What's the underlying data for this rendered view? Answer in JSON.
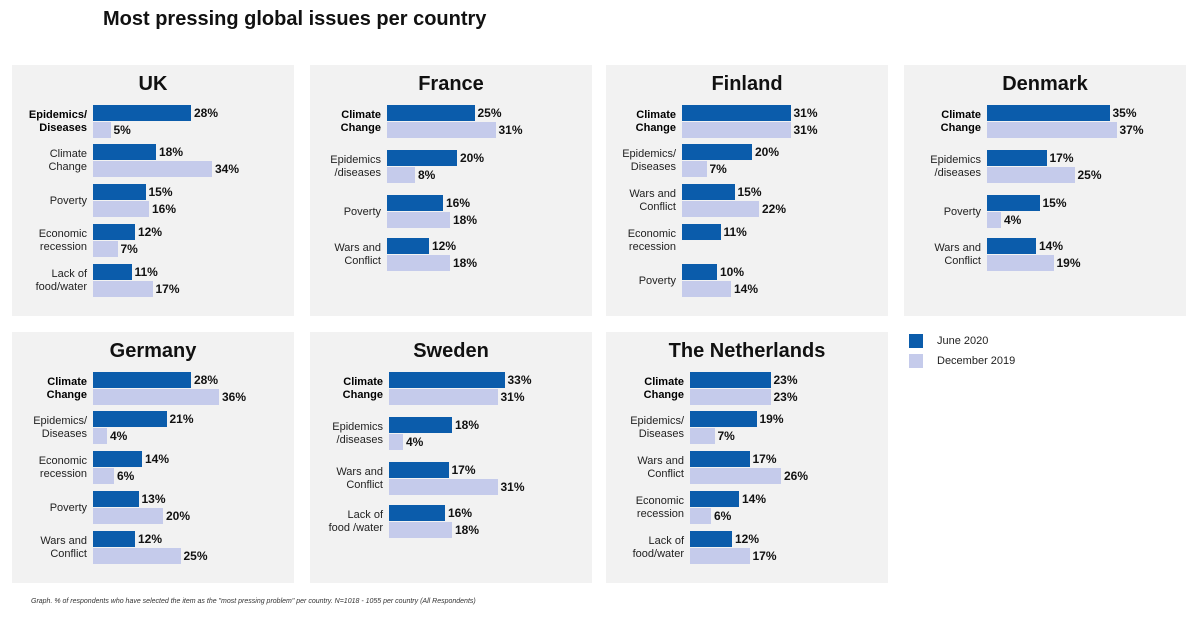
{
  "title": "Most pressing global issues per country",
  "footnote": "Graph. % of respondents who have selected the item as the \"most pressing problem\" per country. N=1018 - 1055 per country (All Respondents)",
  "colors": {
    "june": "#0b5cab",
    "december": "#c5cbeb",
    "panel_bg": "#f2f2f2"
  },
  "legend": {
    "june": "June 2020",
    "december": "December 2019"
  },
  "chart_data": [
    {
      "type": "bar",
      "title": "UK",
      "series_names": [
        "June 2020",
        "December 2019"
      ],
      "categories": [
        {
          "label": "Epidemics/\nDiseases",
          "bold": true,
          "june": 28,
          "dec": 5
        },
        {
          "label": "Climate\nChange",
          "bold": false,
          "june": 18,
          "dec": 34
        },
        {
          "label": "Poverty",
          "bold": false,
          "june": 15,
          "dec": 16
        },
        {
          "label": "Economic\nrecession",
          "bold": false,
          "june": 12,
          "dec": 7
        },
        {
          "label": "Lack of\nfood/water",
          "bold": false,
          "june": 11,
          "dec": 17
        }
      ]
    },
    {
      "type": "bar",
      "title": "France",
      "series_names": [
        "June 2020",
        "December 2019"
      ],
      "categories": [
        {
          "label": "Climate\nChange",
          "bold": true,
          "june": 25,
          "dec": 31
        },
        {
          "label": "Epidemics\n/diseases",
          "bold": false,
          "june": 20,
          "dec": 8
        },
        {
          "label": "Poverty",
          "bold": false,
          "june": 16,
          "dec": 18
        },
        {
          "label": "Wars and\nConflict",
          "bold": false,
          "june": 12,
          "dec": 18
        }
      ]
    },
    {
      "type": "bar",
      "title": "Finland",
      "series_names": [
        "June 2020",
        "December 2019"
      ],
      "categories": [
        {
          "label": "Climate\nChange",
          "bold": true,
          "june": 31,
          "dec": 31
        },
        {
          "label": "Epidemics/\nDiseases",
          "bold": false,
          "june": 20,
          "dec": 7
        },
        {
          "label": "Wars and\nConflict",
          "bold": false,
          "june": 15,
          "dec": 22
        },
        {
          "label": "Economic\nrecession",
          "bold": false,
          "june": 11,
          "dec": null
        },
        {
          "label": "Poverty",
          "bold": false,
          "june": 10,
          "dec": 14
        }
      ]
    },
    {
      "type": "bar",
      "title": "Denmark",
      "series_names": [
        "June 2020",
        "December 2019"
      ],
      "categories": [
        {
          "label": "Climate\nChange",
          "bold": true,
          "june": 35,
          "dec": 37
        },
        {
          "label": "Epidemics\n/diseases",
          "bold": false,
          "june": 17,
          "dec": 25
        },
        {
          "label": "Poverty",
          "bold": false,
          "june": 15,
          "dec": 4
        },
        {
          "label": "Wars and\nConflict",
          "bold": false,
          "june": 14,
          "dec": 19
        }
      ]
    },
    {
      "type": "bar",
      "title": "Germany",
      "series_names": [
        "June 2020",
        "December 2019"
      ],
      "categories": [
        {
          "label": "Climate\nChange",
          "bold": true,
          "june": 28,
          "dec": 36
        },
        {
          "label": "Epidemics/\nDiseases",
          "bold": false,
          "june": 21,
          "dec": 4
        },
        {
          "label": "Economic\nrecession",
          "bold": false,
          "june": 14,
          "dec": 6
        },
        {
          "label": "Poverty",
          "bold": false,
          "june": 13,
          "dec": 20
        },
        {
          "label": "Wars and\nConflict",
          "bold": false,
          "june": 12,
          "dec": 25
        }
      ]
    },
    {
      "type": "bar",
      "title": "Sweden",
      "series_names": [
        "June 2020",
        "December 2019"
      ],
      "categories": [
        {
          "label": "Climate\nChange",
          "bold": true,
          "june": 33,
          "dec": 31
        },
        {
          "label": "Epidemics\n/diseases",
          "bold": false,
          "june": 18,
          "dec": 4
        },
        {
          "label": "Wars and\nConflict",
          "bold": false,
          "june": 17,
          "dec": 31
        },
        {
          "label": "Lack of\nfood /water",
          "bold": false,
          "june": 16,
          "dec": 18
        }
      ]
    },
    {
      "type": "bar",
      "title": "The Netherlands",
      "series_names": [
        "June 2020",
        "December 2019"
      ],
      "categories": [
        {
          "label": "Climate\nChange",
          "bold": true,
          "june": 23,
          "dec": 23
        },
        {
          "label": "Epidemics/\nDiseases",
          "bold": false,
          "june": 19,
          "dec": 7
        },
        {
          "label": "Wars and\nConflict",
          "bold": false,
          "june": 17,
          "dec": 26
        },
        {
          "label": "Economic\nrecession",
          "bold": false,
          "june": 14,
          "dec": 6
        },
        {
          "label": "Lack of\nfood/water",
          "bold": false,
          "june": 12,
          "dec": 17
        }
      ]
    }
  ]
}
